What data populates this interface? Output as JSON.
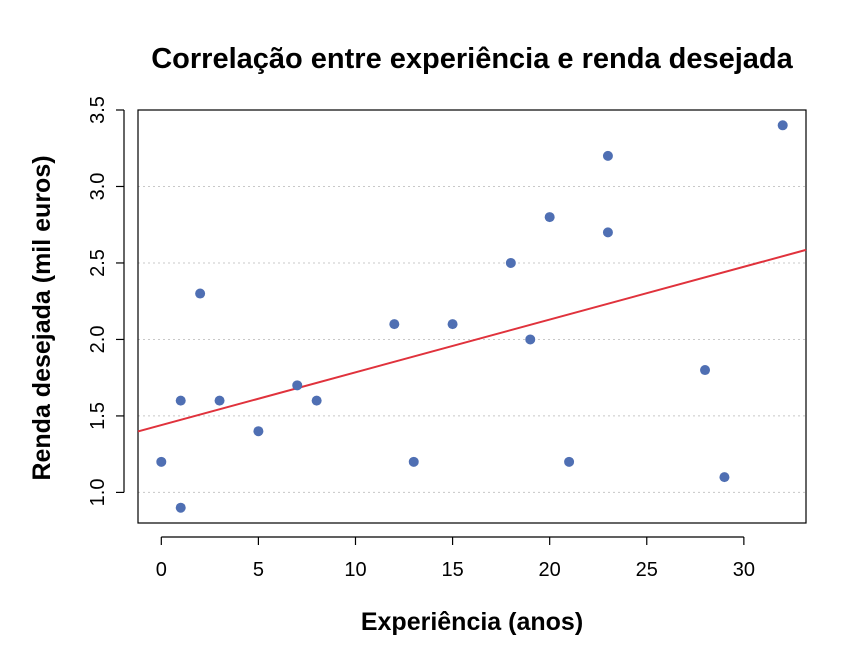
{
  "chart_data": {
    "type": "scatter",
    "title": "Correlação entre experiência e renda desejada",
    "xlabel": "Experiência (anos)",
    "ylabel": "Renda desejada (mil euros)",
    "xlim": [
      -1.2,
      33.2
    ],
    "ylim": [
      0.8,
      3.5
    ],
    "xticks": [
      0,
      5,
      10,
      15,
      20,
      25,
      30
    ],
    "yticks": [
      1.0,
      1.5,
      2.0,
      2.5,
      3.0,
      3.5
    ],
    "ytick_labels": [
      "1.0",
      "1.5",
      "2.0",
      "2.5",
      "3.0",
      "3.5"
    ],
    "grid": "horizontal-dotted",
    "points": [
      {
        "x": 0,
        "y": 1.2
      },
      {
        "x": 1,
        "y": 1.6
      },
      {
        "x": 1,
        "y": 0.9
      },
      {
        "x": 2,
        "y": 2.3
      },
      {
        "x": 3,
        "y": 1.6
      },
      {
        "x": 5,
        "y": 1.4
      },
      {
        "x": 7,
        "y": 1.7
      },
      {
        "x": 8,
        "y": 1.6
      },
      {
        "x": 12,
        "y": 2.1
      },
      {
        "x": 13,
        "y": 1.2
      },
      {
        "x": 15,
        "y": 2.1
      },
      {
        "x": 18,
        "y": 2.5
      },
      {
        "x": 19,
        "y": 2.0
      },
      {
        "x": 20,
        "y": 2.8
      },
      {
        "x": 21,
        "y": 1.2
      },
      {
        "x": 23,
        "y": 3.2
      },
      {
        "x": 23,
        "y": 2.7
      },
      {
        "x": 28,
        "y": 1.8
      },
      {
        "x": 29,
        "y": 1.1
      },
      {
        "x": 32,
        "y": 3.4
      }
    ],
    "trendline": {
      "intercept": 1.44,
      "slope": 0.0345
    },
    "point_color": "#4f6fb3",
    "trendline_color": "#e0323c"
  }
}
